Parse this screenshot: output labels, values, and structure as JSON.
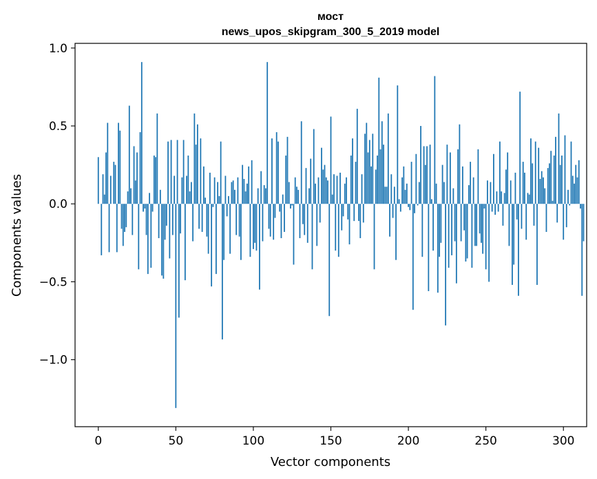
{
  "chart_data": {
    "type": "bar",
    "title": "мост",
    "subtitle": "news_upos_skipgram_300_5_2019 model",
    "xlabel": "Vector components",
    "ylabel": "Components values",
    "xlim": [
      -15,
      315
    ],
    "ylim": [
      -1.43,
      1.03
    ],
    "xticks": [
      0,
      50,
      100,
      150,
      200,
      250,
      300
    ],
    "xtick_labels": [
      "0",
      "50",
      "100",
      "150",
      "200",
      "250",
      "300"
    ],
    "yticks": [
      -1.0,
      -0.5,
      0.0,
      0.5,
      1.0
    ],
    "ytick_labels": [
      "−1.0",
      "−0.5",
      "0.0",
      "0.5",
      "1.0"
    ],
    "bar_color": "#1f77b4",
    "grid": false,
    "values": [
      0.3,
      0.0,
      -0.33,
      0.19,
      0.06,
      0.33,
      0.52,
      -0.31,
      0.18,
      0.0,
      0.27,
      0.25,
      -0.31,
      0.52,
      0.47,
      -0.16,
      -0.27,
      -0.18,
      -0.15,
      0.08,
      0.63,
      0.1,
      -0.2,
      0.37,
      0.15,
      0.33,
      -0.42,
      0.46,
      0.91,
      -0.05,
      -0.03,
      -0.2,
      -0.45,
      0.07,
      -0.41,
      -0.05,
      0.31,
      0.3,
      0.58,
      -0.22,
      0.09,
      -0.46,
      -0.48,
      -0.23,
      -0.14,
      0.4,
      -0.35,
      0.41,
      -0.2,
      0.18,
      -1.31,
      0.41,
      -0.73,
      -0.19,
      0.17,
      0.41,
      -0.49,
      0.18,
      0.31,
      0.08,
      0.14,
      -0.24,
      0.58,
      0.38,
      0.51,
      -0.16,
      0.42,
      -0.18,
      0.24,
      0.04,
      -0.21,
      -0.32,
      0.2,
      -0.53,
      -0.02,
      0.17,
      -0.45,
      0.14,
      0.05,
      0.4,
      -0.87,
      -0.36,
      0.18,
      -0.08,
      0.05,
      -0.32,
      0.14,
      0.15,
      0.09,
      -0.2,
      0.17,
      -0.21,
      -0.36,
      0.25,
      0.16,
      0.08,
      0.13,
      0.24,
      -0.34,
      0.28,
      -0.29,
      -0.25,
      -0.3,
      0.1,
      -0.55,
      0.21,
      -0.24,
      0.12,
      0.1,
      0.91,
      -0.16,
      -0.21,
      0.42,
      -0.23,
      -0.09,
      0.46,
      0.4,
      -0.05,
      -0.22,
      0.06,
      -0.18,
      0.31,
      0.43,
      0.14,
      -0.03,
      -0.01,
      -0.39,
      0.17,
      0.11,
      0.09,
      -0.22,
      0.53,
      -0.13,
      -0.2,
      0.23,
      -0.25,
      0.1,
      0.29,
      -0.42,
      0.48,
      0.13,
      -0.27,
      0.17,
      -0.12,
      0.36,
      0.22,
      0.25,
      0.17,
      0.15,
      -0.72,
      0.56,
      0.06,
      0.19,
      -0.3,
      0.18,
      -0.34,
      0.2,
      -0.17,
      -0.08,
      0.13,
      0.17,
      -0.1,
      -0.26,
      0.31,
      0.42,
      -0.11,
      0.27,
      0.61,
      -0.11,
      -0.22,
      0.19,
      -0.12,
      0.45,
      0.52,
      0.33,
      0.41,
      0.24,
      0.45,
      -0.42,
      0.22,
      0.31,
      0.81,
      0.35,
      0.53,
      0.38,
      0.11,
      0.11,
      0.58,
      -0.21,
      0.19,
      -0.09,
      0.11,
      -0.36,
      0.76,
      0.03,
      -0.05,
      0.17,
      0.24,
      0.09,
      0.13,
      -0.02,
      -0.04,
      0.27,
      -0.68,
      -0.06,
      0.32,
      -0.01,
      0.14,
      0.5,
      -0.34,
      0.37,
      0.25,
      0.37,
      -0.56,
      0.38,
      0.03,
      -0.3,
      0.82,
      0.13,
      -0.57,
      -0.34,
      -0.25,
      0.25,
      0.14,
      -0.78,
      0.38,
      -0.41,
      0.33,
      -0.33,
      0.1,
      -0.24,
      -0.51,
      0.35,
      0.51,
      -0.24,
      0.24,
      -0.17,
      -0.37,
      -0.35,
      0.12,
      0.27,
      -0.41,
      0.17,
      -0.27,
      -0.27,
      0.35,
      -0.19,
      -0.25,
      -0.32,
      -0.03,
      -0.42,
      0.15,
      -0.5,
      0.14,
      -0.05,
      0.32,
      -0.07,
      0.08,
      -0.05,
      0.4,
      0.08,
      -0.14,
      0.07,
      0.22,
      0.33,
      -0.27,
      0.15,
      -0.52,
      -0.39,
      0.2,
      -0.1,
      -0.59,
      0.72,
      -0.16,
      0.27,
      0.2,
      -0.23,
      0.07,
      0.06,
      0.42,
      0.26,
      -0.14,
      0.4,
      -0.52,
      0.36,
      0.16,
      0.21,
      0.17,
      0.1,
      -0.18,
      0.23,
      0.26,
      0.34,
      0.02,
      0.31,
      0.43,
      -0.12,
      0.58,
      0.25,
      0.31,
      -0.23,
      0.44,
      -0.15,
      0.09,
      -0.01,
      0.4,
      0.18,
      0.13,
      0.25,
      0.17,
      0.28,
      -0.03,
      -0.59,
      -0.24
    ]
  }
}
